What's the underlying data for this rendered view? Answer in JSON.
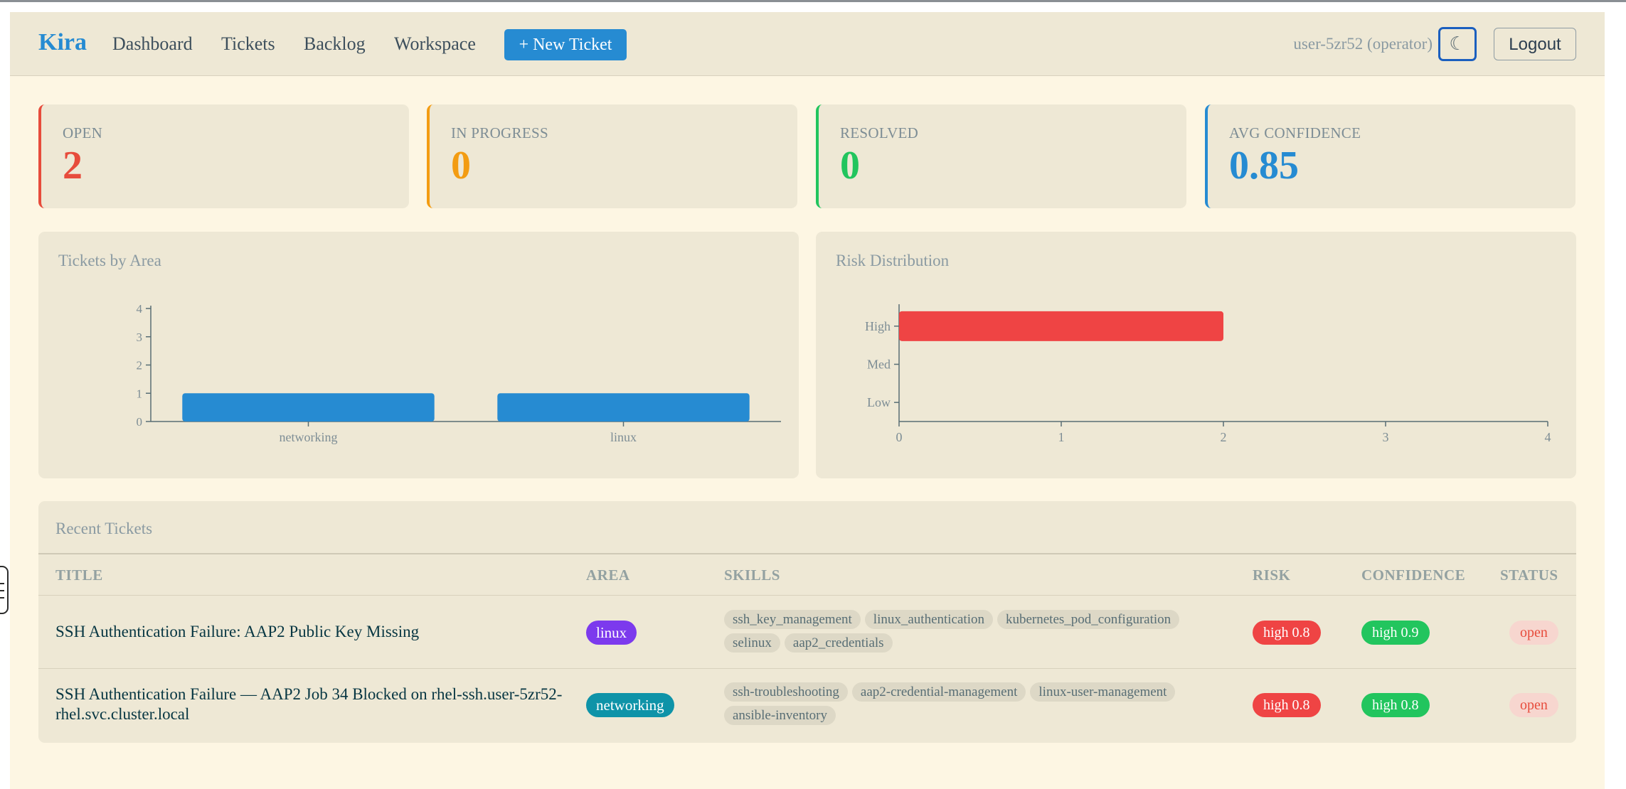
{
  "nav": {
    "brand": "Kira",
    "links": [
      "Dashboard",
      "Tickets",
      "Backlog",
      "Workspace"
    ],
    "new_ticket": "+ New Ticket",
    "user": "user-5zr52 (operator)",
    "theme_icon": "☾",
    "logout": "Logout"
  },
  "stats": [
    {
      "label": "OPEN",
      "value": "2",
      "color": "#e74c3c"
    },
    {
      "label": "IN PROGRESS",
      "value": "0",
      "color": "#f39c12"
    },
    {
      "label": "RESOLVED",
      "value": "0",
      "color": "#22c55e"
    },
    {
      "label": "AVG CONFIDENCE",
      "value": "0.85",
      "color": "#268bd2"
    }
  ],
  "charts": {
    "area_title": "Tickets by Area",
    "risk_title": "Risk Distribution"
  },
  "chart_data": [
    {
      "type": "bar",
      "title": "Tickets by Area",
      "categories": [
        "networking",
        "linux"
      ],
      "values": [
        1,
        1
      ],
      "ylim": [
        0,
        4
      ],
      "yticks": [
        0,
        1,
        2,
        3,
        4
      ],
      "color": "#268bd2",
      "grid": false
    },
    {
      "type": "bar",
      "orientation": "horizontal",
      "title": "Risk Distribution",
      "categories": [
        "High",
        "Med",
        "Low"
      ],
      "values": [
        2,
        0,
        0
      ],
      "xlim": [
        0,
        4
      ],
      "xticks": [
        0,
        1,
        2,
        3,
        4
      ],
      "color": "#ef4444",
      "grid": false
    }
  ],
  "tickets": {
    "title": "Recent Tickets",
    "columns": [
      "TITLE",
      "AREA",
      "SKILLS",
      "RISK",
      "CONFIDENCE",
      "STATUS"
    ],
    "rows": [
      {
        "title": "SSH Authentication Failure: AAP2 Public Key Missing",
        "area": "linux",
        "area_color": "#7c3aed",
        "skills": [
          "ssh_key_management",
          "linux_authentication",
          "kubernetes_pod_configuration",
          "selinux",
          "aap2_credentials"
        ],
        "risk": "high 0.8",
        "confidence": "high 0.9",
        "status": "open"
      },
      {
        "title": "SSH Authentication Failure — AAP2 Job 34 Blocked on rhel-ssh.user-5zr52-rhel.svc.cluster.local",
        "area": "networking",
        "area_color": "#0e93a8",
        "skills": [
          "ssh-troubleshooting",
          "aap2-credential-management",
          "linux-user-management",
          "ansible-inventory"
        ],
        "risk": "high 0.8",
        "confidence": "high 0.8",
        "status": "open"
      }
    ]
  }
}
